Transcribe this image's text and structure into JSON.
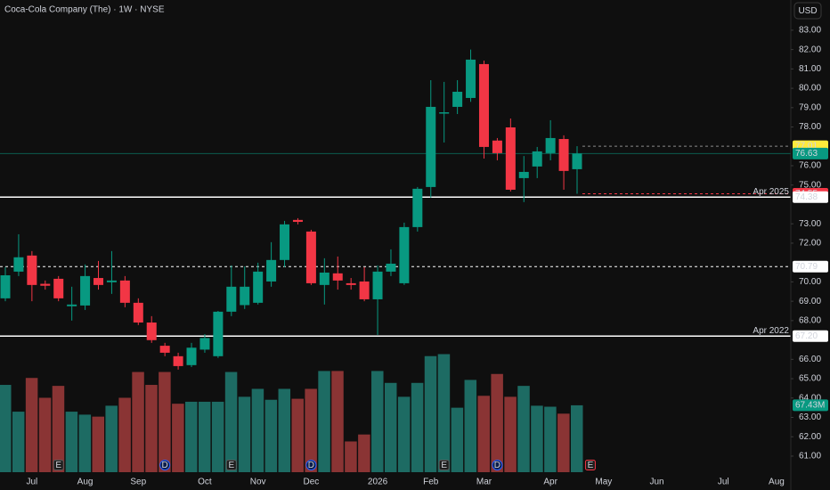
{
  "chart_data": {
    "type": "candlestick",
    "title": "Coca-Cola Company (The) · 1W · NYSE",
    "currency": "USD",
    "categories": [
      null,
      null,
      "Jul",
      null,
      null,
      null,
      "Aug",
      null,
      null,
      null,
      "Sep",
      null,
      null,
      null,
      null,
      "Oct",
      null,
      null,
      null,
      "Nov",
      null,
      null,
      null,
      "Dec",
      null,
      null,
      null,
      null,
      "2026",
      null,
      null,
      null,
      "Feb",
      null,
      null,
      null,
      "Mar",
      null,
      null,
      null,
      null,
      "Apr",
      null,
      null,
      null,
      "May",
      null,
      null,
      null,
      "Jun",
      null,
      null,
      null,
      null,
      "Jul",
      null,
      null,
      null,
      "Aug",
      null
    ],
    "open": [
      69.15,
      70.53,
      71.36,
      69.9,
      70.16,
      68.74,
      68.78,
      70.2,
      69.98,
      70.07,
      68.92,
      67.9,
      66.7,
      66.16,
      65.7,
      66.5,
      66.16,
      68.46,
      68.8,
      68.92,
      70.02,
      71.13,
      73.2,
      72.6,
      69.84,
      70.44,
      69.93,
      70.02,
      69.1,
      70.53,
      69.93,
      72.83,
      74.9,
      78.7,
      79.04,
      79.5,
      81.25,
      77.3,
      77.98,
      75.36,
      75.96,
      76.65,
      77.38,
      75.82,
      null,
      null,
      null,
      null,
      null,
      null,
      null,
      null,
      null,
      null,
      null,
      null,
      null,
      null,
      null,
      null
    ],
    "high": [
      70.76,
      72.46,
      71.59,
      70.07,
      70.3,
      69.75,
      70.9,
      71.08,
      71.59,
      70.3,
      69.15,
      68.23,
      66.85,
      66.34,
      66.85,
      67.3,
      68.5,
      70.85,
      70.8,
      70.99,
      72.05,
      73.15,
      73.29,
      72.69,
      71.22,
      71.31,
      70.2,
      70.76,
      70.85,
      71.68,
      73.06,
      74.9,
      80.42,
      80.33,
      80.42,
      82.0,
      81.43,
      77.43,
      78.44,
      76.5,
      76.97,
      78.35,
      77.57,
      77.01,
      null,
      null,
      null,
      null,
      null,
      null,
      null,
      null,
      null,
      null,
      null,
      null,
      null,
      null,
      null,
      null
    ],
    "low": [
      69.0,
      70.3,
      69.0,
      69.6,
      69.0,
      68.0,
      68.55,
      69.6,
      69.38,
      68.69,
      67.77,
      66.85,
      66.16,
      65.47,
      65.6,
      66.34,
      66.07,
      68.23,
      68.6,
      68.83,
      69.75,
      70.76,
      72.97,
      69.84,
      68.83,
      69.6,
      69.6,
      69.0,
      67.26,
      70.3,
      69.84,
      72.6,
      74.35,
      77.2,
      78.67,
      79.3,
      76.37,
      76.28,
      74.67,
      74.12,
      75.36,
      76.28,
      74.76,
      74.55,
      null,
      null,
      null,
      null,
      null,
      null,
      null,
      null,
      null,
      null,
      null,
      null,
      null,
      null,
      null,
      null
    ],
    "close": [
      70.34,
      71.27,
      69.84,
      69.8,
      69.15,
      68.83,
      70.3,
      69.84,
      70.07,
      68.92,
      67.9,
      66.99,
      66.34,
      65.65,
      66.6,
      67.1,
      68.46,
      69.75,
      69.75,
      70.53,
      71.13,
      72.97,
      73.1,
      69.93,
      70.48,
      70.07,
      69.84,
      69.1,
      70.53,
      70.94,
      72.83,
      74.81,
      79.04,
      78.76,
      79.82,
      81.48,
      76.97,
      76.65,
      74.76,
      75.68,
      76.74,
      77.43,
      75.73,
      76.63,
      null,
      null,
      null,
      null,
      null,
      null,
      null,
      null,
      null,
      null,
      null,
      null,
      null,
      null,
      null,
      null
    ],
    "volume": [
      88000000,
      61000000,
      95000000,
      75000000,
      87000000,
      61000000,
      58000000,
      56000000,
      67000000,
      75000000,
      101000000,
      88000000,
      101000000,
      69000000,
      71000000,
      71000000,
      71000000,
      101000000,
      76000000,
      84000000,
      73000000,
      84000000,
      74000000,
      84000000,
      102000000,
      102000000,
      31000000,
      38000000,
      102000000,
      90000000,
      76000000,
      90000000,
      117000000,
      119000000,
      65000000,
      93000000,
      77000000,
      99000000,
      76000000,
      87000000,
      67000000,
      66000000,
      59000000,
      67430000,
      null,
      null,
      null,
      null,
      null,
      null,
      null,
      null,
      null,
      null,
      null,
      null,
      null,
      null,
      null,
      null
    ],
    "volume_labels": [
      null,
      null,
      null,
      null,
      null,
      null,
      null,
      null,
      null,
      null,
      null,
      null,
      null,
      null,
      null,
      null,
      null,
      null,
      null,
      null,
      null,
      null,
      null,
      null,
      null,
      null,
      null,
      null,
      null,
      null,
      null,
      null,
      null,
      null,
      null,
      null,
      null,
      null,
      null,
      null,
      null,
      null,
      null,
      "67.43M",
      null,
      null,
      null,
      null,
      null,
      null,
      null,
      null,
      null,
      null,
      null,
      null,
      null,
      null,
      null,
      null
    ],
    "events": [
      null,
      null,
      null,
      null,
      "E",
      null,
      null,
      null,
      null,
      null,
      null,
      null,
      "D",
      null,
      null,
      null,
      null,
      "E",
      null,
      null,
      null,
      null,
      null,
      "D",
      null,
      null,
      null,
      null,
      null,
      null,
      null,
      null,
      null,
      "E",
      null,
      null,
      null,
      "D",
      null,
      null,
      null,
      null,
      null,
      null,
      "E",
      null,
      null,
      null,
      null,
      null,
      null,
      null,
      null,
      null,
      null,
      null,
      null,
      null,
      null,
      null
    ],
    "ylim": [
      60.17,
      84.56
    ],
    "volume_lim": [
      0,
      476000000
    ],
    "yticks": [
      {
        "value": 83,
        "label": "83.00"
      },
      {
        "value": 82,
        "label": "82.00"
      },
      {
        "value": 81,
        "label": "81.00"
      },
      {
        "value": 80,
        "label": "80.00"
      },
      {
        "value": 79,
        "label": "79.00"
      },
      {
        "value": 78,
        "label": "78.00"
      },
      {
        "value": 76,
        "label": "76.00"
      },
      {
        "value": 75,
        "label": "75.00"
      },
      {
        "value": 73,
        "label": "73.00"
      },
      {
        "value": 72,
        "label": "72.00"
      },
      {
        "value": 70,
        "label": "70.00"
      },
      {
        "value": 69,
        "label": "69.00"
      },
      {
        "value": 68,
        "label": "68.00"
      },
      {
        "value": 66,
        "label": "66.00"
      },
      {
        "value": 65,
        "label": "65.00"
      },
      {
        "value": 64,
        "label": "64.00"
      },
      {
        "value": 63,
        "label": "63.00"
      },
      {
        "value": 62,
        "label": "62.00"
      },
      {
        "value": 61,
        "label": "61.00"
      }
    ],
    "up_color": "#089981",
    "down_color": "#f23645",
    "volume_up_color": "#1d6b63",
    "volume_down_color": "#8a3434",
    "price_lines": [
      {
        "value": 77.01,
        "color": "#8a8a8a",
        "tag_color": "#ffeb3b",
        "text_color": "#000000",
        "style": "dashed",
        "extent": "from-last"
      },
      {
        "value": 76.63,
        "color": "#0d5c4f",
        "tag_color": "#089981",
        "text_color": "#ffffff",
        "style": "solid",
        "extent": "full"
      },
      {
        "value": 74.55,
        "color": "#f23645",
        "tag_color": "#f23645",
        "text_color": "#ffffff",
        "style": "dashed",
        "extent": "from-last"
      },
      {
        "value": 74.38,
        "color": "#ffffff",
        "tag_color": "#ffffff",
        "text_color": "#000000",
        "style": "solid",
        "extent": "full",
        "note": "Apr 2025"
      },
      {
        "value": 70.79,
        "color": "#ffffff",
        "tag_color": "#ffffff",
        "text_color": "#000000",
        "style": "dashed",
        "extent": "full"
      },
      {
        "value": 67.2,
        "label": "67.20",
        "color": "#ffffff",
        "tag_color": "#ffffff",
        "text_color": "#000000",
        "style": "solid",
        "extent": "full",
        "note": "Apr 2022"
      }
    ]
  }
}
